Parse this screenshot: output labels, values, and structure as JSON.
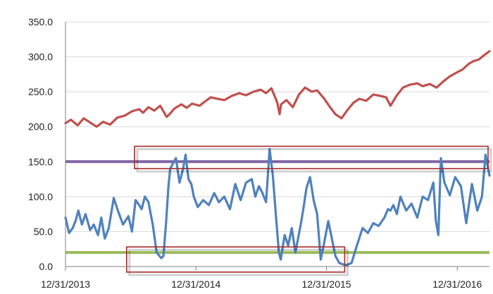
{
  "chart_data": {
    "type": "line",
    "title": "",
    "xlabel": "",
    "ylabel": "",
    "xlim": [
      "2013-12-31",
      "2017-03-31"
    ],
    "ylim": [
      0,
      350
    ],
    "grid": "horizontal",
    "legend": "none",
    "y_ticks": [
      "350.0",
      "300.0",
      "250.0",
      "200.0",
      "150.0",
      "100.0",
      "50.0",
      "0.0"
    ],
    "x_ticks": [
      "12/31/2013",
      "12/31/2014",
      "12/31/2015",
      "12/31/2016"
    ],
    "x_tick_dates": [
      "2013-12-31",
      "2014-12-31",
      "2015-12-31",
      "2016-12-31"
    ],
    "colors": {
      "index_series": "#c0504d",
      "oscillator_series": "#4f81bd",
      "upper_threshold": "#8064a2",
      "lower_threshold": "#9bbb59",
      "highlight_box": "#a52a2a",
      "gridline": "#d9d9d9",
      "axis": "#808080"
    },
    "series": [
      {
        "key": "index",
        "x": [
          "2013-12-31",
          "2014-01-15",
          "2014-02-03",
          "2014-02-20",
          "2014-03-10",
          "2014-03-28",
          "2014-04-15",
          "2014-05-05",
          "2014-05-25",
          "2014-06-15",
          "2014-07-05",
          "2014-07-25",
          "2014-08-05",
          "2014-08-20",
          "2014-09-05",
          "2014-09-22",
          "2014-10-10",
          "2014-10-18",
          "2014-11-01",
          "2014-11-20",
          "2014-12-05",
          "2014-12-20",
          "2015-01-10",
          "2015-01-25",
          "2015-02-10",
          "2015-03-01",
          "2015-03-20",
          "2015-04-10",
          "2015-05-01",
          "2015-05-20",
          "2015-06-10",
          "2015-06-30",
          "2015-07-15",
          "2015-07-30",
          "2015-08-15",
          "2015-08-22",
          "2015-08-26",
          "2015-09-10",
          "2015-09-28",
          "2015-10-15",
          "2015-11-01",
          "2015-11-20",
          "2015-12-05",
          "2015-12-25",
          "2016-01-10",
          "2016-01-25",
          "2016-02-11",
          "2016-02-28",
          "2016-03-15",
          "2016-04-01",
          "2016-04-20",
          "2016-05-10",
          "2016-05-30",
          "2016-06-15",
          "2016-06-27",
          "2016-07-15",
          "2016-08-01",
          "2016-08-20",
          "2016-09-10",
          "2016-09-25",
          "2016-10-15",
          "2016-11-03",
          "2016-11-20",
          "2016-12-10",
          "2016-12-31",
          "2017-01-15",
          "2017-02-01",
          "2017-02-15",
          "2017-03-01",
          "2017-03-15",
          "2017-03-31"
        ],
        "y": [
          205,
          210,
          202,
          212,
          206,
          200,
          207,
          203,
          213,
          216,
          222,
          225,
          220,
          228,
          223,
          230,
          214,
          218,
          226,
          232,
          227,
          233,
          230,
          236,
          242,
          240,
          238,
          244,
          248,
          245,
          250,
          253,
          248,
          255,
          235,
          218,
          232,
          238,
          228,
          246,
          256,
          250,
          252,
          240,
          228,
          218,
          212,
          224,
          234,
          240,
          237,
          246,
          244,
          242,
          230,
          245,
          256,
          260,
          262,
          258,
          261,
          256,
          264,
          272,
          278,
          282,
          290,
          294,
          296,
          302,
          308
        ]
      },
      {
        "key": "oscillator",
        "x": [
          "2013-12-31",
          "2014-01-10",
          "2014-01-20",
          "2014-01-28",
          "2014-02-05",
          "2014-02-15",
          "2014-02-25",
          "2014-03-10",
          "2014-03-20",
          "2014-04-01",
          "2014-04-10",
          "2014-04-20",
          "2014-05-01",
          "2014-05-15",
          "2014-05-28",
          "2014-06-10",
          "2014-06-25",
          "2014-07-05",
          "2014-07-15",
          "2014-07-25",
          "2014-08-01",
          "2014-08-10",
          "2014-08-20",
          "2014-09-01",
          "2014-09-12",
          "2014-09-25",
          "2014-10-01",
          "2014-10-08",
          "2014-10-15",
          "2014-10-20",
          "2014-10-25",
          "2014-11-05",
          "2014-11-15",
          "2014-11-25",
          "2014-12-02",
          "2014-12-10",
          "2014-12-18",
          "2014-12-25",
          "2015-01-05",
          "2015-01-20",
          "2015-02-05",
          "2015-02-20",
          "2015-03-05",
          "2015-03-20",
          "2015-04-05",
          "2015-04-20",
          "2015-05-05",
          "2015-05-20",
          "2015-06-05",
          "2015-06-15",
          "2015-06-25",
          "2015-07-05",
          "2015-07-15",
          "2015-07-25",
          "2015-08-03",
          "2015-08-12",
          "2015-08-20",
          "2015-08-25",
          "2015-09-05",
          "2015-09-15",
          "2015-09-25",
          "2015-10-05",
          "2015-10-20",
          "2015-10-28",
          "2015-11-05",
          "2015-11-15",
          "2015-11-25",
          "2015-12-05",
          "2015-12-15",
          "2015-12-25",
          "2016-01-05",
          "2016-01-15",
          "2016-01-25",
          "2016-02-05",
          "2016-02-15",
          "2016-02-25",
          "2016-03-10",
          "2016-03-25",
          "2016-04-10",
          "2016-04-25",
          "2016-05-10",
          "2016-05-25",
          "2016-06-10",
          "2016-06-20",
          "2016-06-27",
          "2016-07-05",
          "2016-07-15",
          "2016-07-25",
          "2016-08-10",
          "2016-08-25",
          "2016-09-10",
          "2016-09-25",
          "2016-10-10",
          "2016-10-25",
          "2016-11-01",
          "2016-11-08",
          "2016-11-15",
          "2016-11-25",
          "2016-12-10",
          "2016-12-25",
          "2017-01-10",
          "2017-01-25",
          "2017-02-10",
          "2017-02-25",
          "2017-03-10",
          "2017-03-20",
          "2017-03-31"
        ],
        "y": [
          70,
          48,
          55,
          65,
          80,
          60,
          75,
          52,
          60,
          45,
          70,
          40,
          55,
          98,
          78,
          60,
          72,
          50,
          95,
          88,
          82,
          100,
          92,
          60,
          20,
          12,
          15,
          60,
          115,
          140,
          145,
          155,
          120,
          140,
          160,
          125,
          118,
          100,
          85,
          95,
          88,
          105,
          92,
          100,
          82,
          118,
          95,
          120,
          125,
          100,
          115,
          105,
          92,
          168,
          130,
          70,
          20,
          10,
          45,
          30,
          55,
          20,
          60,
          85,
          112,
          128,
          95,
          75,
          10,
          35,
          65,
          40,
          15,
          5,
          3,
          2,
          5,
          30,
          55,
          48,
          62,
          58,
          70,
          82,
          80,
          88,
          75,
          100,
          80,
          90,
          70,
          100,
          95,
          120,
          65,
          45,
          155,
          120,
          102,
          128,
          115,
          62,
          118,
          80,
          100,
          160,
          130
        ]
      }
    ],
    "reference_lines": [
      {
        "key": "upper",
        "y": 150
      },
      {
        "key": "lower",
        "y": 20
      }
    ],
    "highlight_boxes": [
      {
        "x_start": "2014-07-12",
        "x_end": "2017-03-31",
        "y_low": 140,
        "y_high": 172
      },
      {
        "x_start": "2014-06-20",
        "x_end": "2016-02-20",
        "y_low": -8,
        "y_high": 28
      }
    ]
  }
}
